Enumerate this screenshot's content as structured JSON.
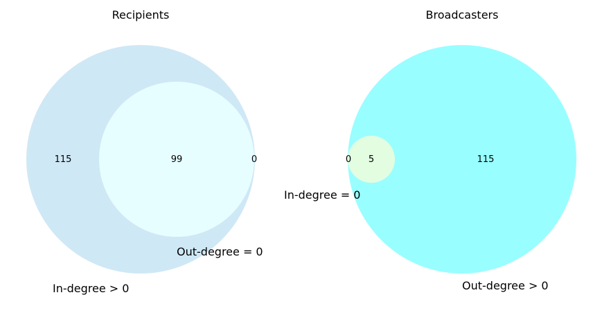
{
  "chart_data": [
    {
      "type": "venn",
      "title": "Recipients",
      "colors": {
        "left": "#cfe8f5",
        "overlap": "#e6feff"
      },
      "sets": [
        {
          "name": "In-degree > 0",
          "size": 214
        },
        {
          "name": "Out-degree = 0",
          "size": 99
        }
      ],
      "regions": {
        "only_in_degree": 115,
        "both": 99,
        "only_out_degree": 0
      },
      "labels": {
        "left_only": "115",
        "both": "99",
        "right_only": "0"
      }
    },
    {
      "type": "venn",
      "title": "Broadcasters",
      "colors": {
        "right": "#99feff",
        "overlap": "#e3fde1"
      },
      "sets": [
        {
          "name": "In-degree = 0",
          "size": 5
        },
        {
          "name": "Out-degree > 0",
          "size": 120
        }
      ],
      "regions": {
        "only_in_degree": 0,
        "both": 5,
        "only_out_degree": 115
      },
      "labels": {
        "left_only": "0",
        "both": "5",
        "right_only": "115"
      }
    }
  ]
}
